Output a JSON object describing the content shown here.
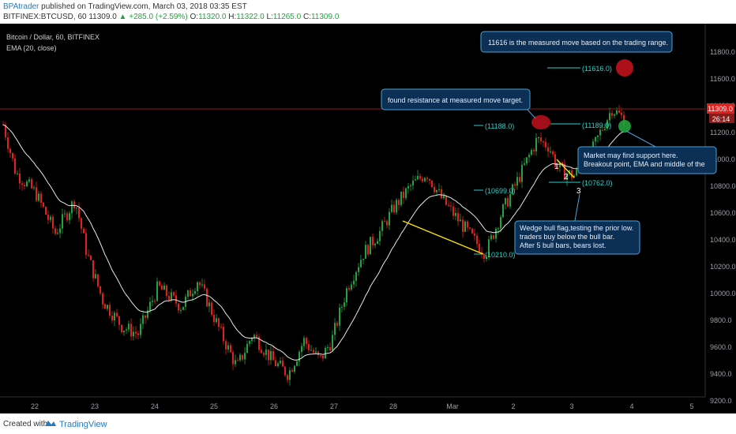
{
  "header": {
    "author": "BPAtrader",
    "published": "published on TradingView.com, March 03, 2018 03:35 EST",
    "symbol": "BITFINEX:BTCUSD, 60",
    "last": "11309.0",
    "change": "▲ +285.0 (+2.59%)",
    "o_label": "O:",
    "o_value": "11320.0",
    "h_label": "H:",
    "h_value": "11322.0",
    "l_label": "L:",
    "l_value": "11265.0",
    "c_label": "C:",
    "c_value": "11309.0"
  },
  "chart": {
    "title": "Bitcoin / Dollar, 60, BITFINEX",
    "indicator": "EMA (20, close)",
    "price_label": "11309.0",
    "countdown": "26:14",
    "colors": {
      "bull": "#26a142",
      "bear": "#e0221f",
      "ema": "#e8e8e8",
      "annot": "#4aa3d8",
      "trend": "#ffe600",
      "axis_text": "#9aa0a6"
    }
  },
  "chart_data": {
    "type": "candlestick",
    "y_ticks": [
      "11800.0",
      "11600.0",
      "11400.0",
      "11200.0",
      "11000.0",
      "10800.0",
      "10600.0",
      "10400.0",
      "10200.0",
      "10000.0",
      "9800.0",
      "9600.0",
      "9400.0",
      "9200.0"
    ],
    "x_ticks": [
      "22",
      "23",
      "24",
      "25",
      "26",
      "27",
      "28",
      "Mar",
      "2",
      "3",
      "4",
      "5"
    ],
    "ylim": [
      9150,
      11950
    ],
    "levels": [
      {
        "label": "(11616.0)",
        "value": 11616
      },
      {
        "label": "(11188.0)",
        "value": 11188
      },
      {
        "label": "(11189.0)",
        "value": 11189
      },
      {
        "label": "(10699.0)",
        "value": 10699
      },
      {
        "label": "(10762.0)",
        "value": 10762
      },
      {
        "label": "(10210.0)",
        "value": 10210
      }
    ],
    "wedge_labels": [
      "1",
      "2",
      "3"
    ]
  },
  "annotations": {
    "measured_move": "11616 is the measured move based on the trading range.",
    "resistance": "found resistance at measured move target.",
    "support_1": "Market may find support here.",
    "support_2": "Breakout point, EMA and middle of the",
    "wedge_1": "Wedge bull flag,testing the prior low.",
    "wedge_2": "traders buy below the bull bar.",
    "wedge_3": "After 5 bull bars, bears lost."
  },
  "footer": {
    "created": "Created with",
    "brand": "TradingView"
  }
}
